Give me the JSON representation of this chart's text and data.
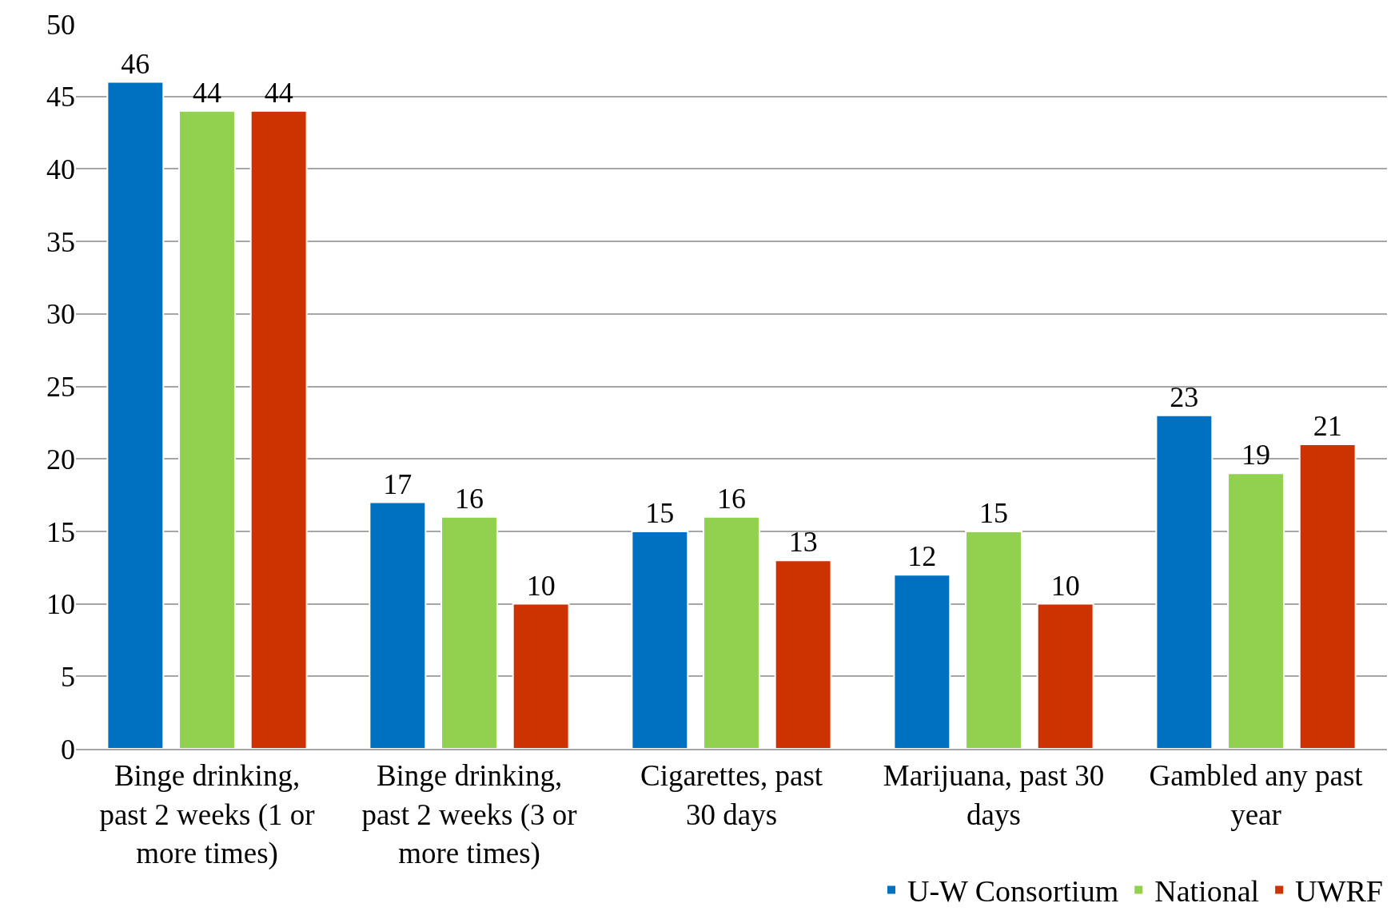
{
  "chart_data": {
    "type": "bar",
    "categories": [
      "Binge drinking, past 2 weeks (1 or more times)",
      "Binge drinking, past 2 weeks (3 or more times)",
      "Cigarettes, past 30 days",
      "Marijuana, past 30 days",
      "Gambled any past year"
    ],
    "series": [
      {
        "name": "U-W Consortium",
        "color": "#0070c0",
        "values": [
          46,
          17,
          15,
          12,
          23
        ]
      },
      {
        "name": "National",
        "color": "#92d050",
        "values": [
          44,
          16,
          16,
          15,
          19
        ]
      },
      {
        "name": "UWRF",
        "color": "#cc3300",
        "values": [
          44,
          10,
          13,
          10,
          21
        ]
      }
    ],
    "ylim": [
      0,
      50
    ],
    "yticks": [
      0,
      5,
      10,
      15,
      20,
      25,
      30,
      35,
      40,
      45,
      50
    ],
    "grid": "y",
    "data_labels": true,
    "legend": "bottom right"
  }
}
